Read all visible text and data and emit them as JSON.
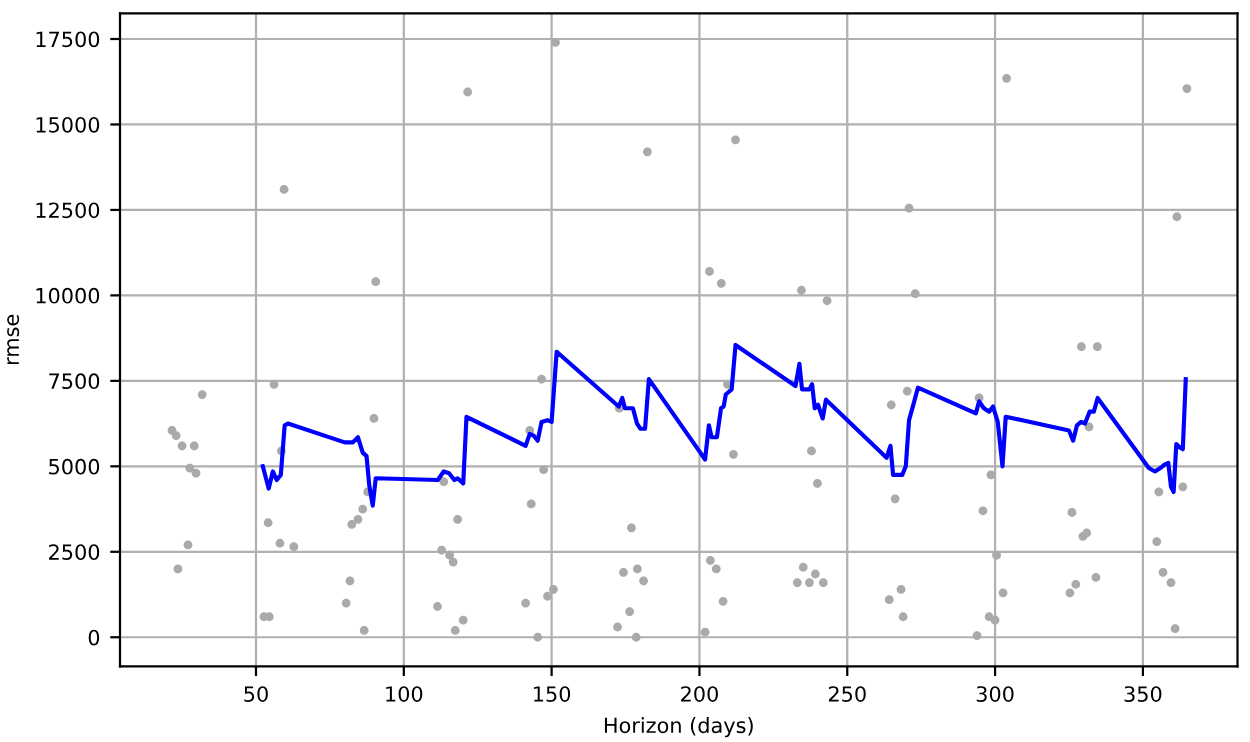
{
  "chart_data": {
    "type": "scatter",
    "xlabel": "Horizon (days)",
    "ylabel": "rmse",
    "xlim": [
      4,
      382
    ],
    "ylim": [
      -850,
      18250
    ],
    "xticks": [
      50,
      100,
      150,
      200,
      250,
      300,
      350
    ],
    "yticks": [
      0,
      2500,
      5000,
      7500,
      10000,
      12500,
      15000,
      17500
    ],
    "grid": true,
    "legend": false,
    "series": [
      {
        "color": "#aaaaaa",
        "marker": "circle",
        "x": [
          31.8,
          21.6,
          23,
          25,
          29.1,
          27.6,
          29.7,
          27,
          23.6,
          56.1,
          58.6,
          89.9,
          87.8,
          86.1,
          84.5,
          82.4,
          54.1,
          58.1,
          62.8,
          52.7,
          54.5,
          81.8,
          80.5,
          86.6,
          113.5,
          118.2,
          112.8,
          115.5,
          116.7,
          111.4,
          120.1,
          117.4,
          146.6,
          142.6,
          147.3,
          143.1,
          141.2,
          148.6,
          150.6,
          145.3,
          177,
          174.3,
          179,
          181.1,
          176.4,
          172.3,
          178.6,
          172.9,
          151.3,
          121.6,
          182.4,
          59.5,
          90.5,
          303.9,
          364.9,
          212.2,
          270.9,
          361.5,
          203.4,
          207.4,
          234.5,
          243.2,
          273,
          329.2,
          334.6,
          209.5,
          211.5,
          237.9,
          239.9,
          203.7,
          205.7,
          208,
          201.9,
          235.1,
          233.1,
          237.2,
          239.2,
          241.9,
          264.9,
          270.3,
          266.2,
          264.2,
          268.2,
          268.9,
          294.6,
          298.6,
          295.9,
          300.5,
          302.7,
          298,
          300,
          293.9,
          331.8,
          326,
          329.7,
          331,
          325.3,
          327.3,
          334.1,
          355.4,
          363.5,
          354.7,
          356.8,
          359.5,
          360.9
        ],
        "values": [
          7100,
          6050,
          5900,
          5600,
          5600,
          4950,
          4800,
          2700,
          2000,
          7400,
          5450,
          6400,
          4250,
          3750,
          3450,
          3300,
          3350,
          2750,
          2650,
          600,
          600,
          1650,
          1000,
          200,
          4550,
          3450,
          2550,
          2400,
          2200,
          900,
          500,
          200,
          7550,
          6050,
          4900,
          3900,
          1000,
          1200,
          1400,
          0,
          3200,
          1900,
          2000,
          1650,
          750,
          300,
          0,
          6700,
          17400,
          15950,
          14200,
          13100,
          10400,
          16350,
          16050,
          14550,
          12550,
          12300,
          10700,
          10350,
          10150,
          9850,
          10050,
          8500,
          8500,
          7400,
          5350,
          5450,
          4500,
          2250,
          2000,
          1050,
          150,
          2050,
          1600,
          1600,
          1850,
          1600,
          6800,
          7200,
          4050,
          1100,
          1400,
          600,
          7000,
          4750,
          3700,
          2400,
          1300,
          600,
          500,
          50,
          6150,
          3650,
          2950,
          3050,
          1300,
          1550,
          1750,
          4250,
          4400,
          2800,
          1900,
          1600,
          250
        ]
      },
      {
        "type": "line",
        "color": "#0000ff",
        "marker": "none",
        "line_style": "solid",
        "x": [
          52.3,
          54.3,
          55.7,
          57,
          58.4,
          59.7,
          60.8,
          80,
          82.7,
          84.5,
          86.1,
          87.4,
          88.3,
          89.5,
          90.5,
          111.5,
          113.5,
          115.3,
          117.1,
          118.2,
          120.1,
          121.2,
          141.2,
          142.6,
          143.9,
          145.3,
          146.6,
          148.6,
          150,
          151.7,
          172.7,
          173.9,
          174.8,
          177.5,
          178.9,
          180,
          181.6,
          182.9,
          200.3,
          201.9,
          203.2,
          204.1,
          205.9,
          207.3,
          208.2,
          208.9,
          210.9,
          212.2,
          232.5,
          233.8,
          234.7,
          237.2,
          238.1,
          239,
          240.1,
          241.7,
          242.8,
          263.3,
          264.6,
          265.5,
          268.6,
          269.8,
          270.9,
          272.5,
          273.9,
          293.5,
          294.6,
          296.2,
          298,
          299.3,
          300.9,
          302.5,
          303.6,
          325,
          326.4,
          327.7,
          329.1,
          330.4,
          332,
          333.4,
          334.7,
          352,
          354.1,
          355.9,
          357.3,
          358.6,
          359.5,
          360.4,
          361.3,
          362.5,
          363.5,
          364.5
        ],
        "values": [
          5000,
          4350,
          4850,
          4600,
          4750,
          6200,
          6250,
          5700,
          5700,
          5850,
          5400,
          5300,
          4450,
          3850,
          4650,
          4600,
          4850,
          4800,
          4600,
          4650,
          4500,
          6450,
          5600,
          5950,
          5900,
          5750,
          6300,
          6350,
          6300,
          8350,
          6750,
          7000,
          6700,
          6700,
          6250,
          6100,
          6100,
          7550,
          5400,
          5200,
          6200,
          5850,
          5850,
          6700,
          6750,
          7100,
          7250,
          8550,
          7350,
          8000,
          7250,
          7250,
          7400,
          6700,
          6800,
          6400,
          6950,
          5250,
          5600,
          4750,
          4750,
          5000,
          6350,
          6850,
          7300,
          6550,
          6900,
          6700,
          6600,
          6750,
          6300,
          5000,
          6450,
          6050,
          5750,
          6200,
          6300,
          6250,
          6600,
          6600,
          7000,
          4950,
          4850,
          4950,
          5050,
          5100,
          4400,
          4250,
          5650,
          5550,
          5500,
          7550
        ]
      }
    ]
  }
}
